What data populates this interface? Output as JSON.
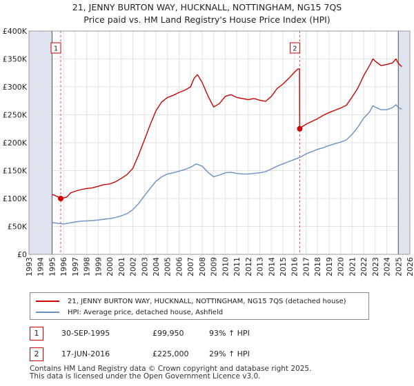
{
  "colors": {
    "price_line": "#cc0000",
    "hpi_line": "#6a8fc2",
    "shade": "#dde4f0",
    "grid": "#e2e2e2",
    "marker_box": "#cc0000"
  },
  "chart_data": {
    "type": "line",
    "title": "21, JENNY BURTON WAY, HUCKNALL, NOTTINGHAM, NG15 7QS",
    "subtitle": "Price paid vs. HM Land Registry's House Price Index (HPI)",
    "xlim": [
      1993,
      2026
    ],
    "ylim": [
      0,
      400000
    ],
    "x_ticks": [
      "1993",
      "1994",
      "1995",
      "1996",
      "1997",
      "1998",
      "1999",
      "2000",
      "2001",
      "2002",
      "2003",
      "2004",
      "2005",
      "2006",
      "2007",
      "2008",
      "2009",
      "2010",
      "2011",
      "2012",
      "2013",
      "2014",
      "2015",
      "2016",
      "2017",
      "2018",
      "2019",
      "2020",
      "2021",
      "2022",
      "2023",
      "2024",
      "2025",
      "2026"
    ],
    "y_ticks": [
      {
        "value": 0,
        "label": "£0"
      },
      {
        "value": 50000,
        "label": "£50K"
      },
      {
        "value": 100000,
        "label": "£100K"
      },
      {
        "value": 150000,
        "label": "£150K"
      },
      {
        "value": 200000,
        "label": "£200K"
      },
      {
        "value": 250000,
        "label": "£250K"
      },
      {
        "value": 300000,
        "label": "£300K"
      },
      {
        "value": 350000,
        "label": "£350K"
      },
      {
        "value": 400000,
        "label": "£400K"
      }
    ],
    "shaded_ranges": [
      [
        1993,
        1995.0
      ],
      [
        2025.0,
        2026
      ]
    ],
    "series": [
      {
        "name": "21, JENNY BURTON WAY, HUCKNALL, NOTTINGHAM, NG15 7QS (detached house)",
        "color": "#cc0000",
        "points": [
          [
            1995.0,
            107000
          ],
          [
            1995.2,
            106000
          ],
          [
            1995.5,
            103000
          ],
          [
            1995.75,
            99950
          ],
          [
            1996.0,
            101000
          ],
          [
            1996.3,
            103000
          ],
          [
            1996.6,
            110000
          ],
          [
            1997.0,
            113000
          ],
          [
            1997.5,
            116000
          ],
          [
            1998.0,
            118000
          ],
          [
            1998.5,
            119000
          ],
          [
            1999.0,
            122000
          ],
          [
            1999.5,
            125000
          ],
          [
            2000.0,
            126000
          ],
          [
            2000.5,
            130000
          ],
          [
            2001.0,
            136000
          ],
          [
            2001.5,
            143000
          ],
          [
            2002.0,
            154000
          ],
          [
            2002.5,
            178000
          ],
          [
            2003.0,
            205000
          ],
          [
            2003.5,
            232000
          ],
          [
            2004.0,
            257000
          ],
          [
            2004.5,
            273000
          ],
          [
            2005.0,
            281000
          ],
          [
            2005.5,
            285000
          ],
          [
            2006.0,
            290000
          ],
          [
            2006.5,
            294000
          ],
          [
            2007.0,
            300000
          ],
          [
            2007.3,
            315000
          ],
          [
            2007.6,
            322000
          ],
          [
            2008.0,
            308000
          ],
          [
            2008.5,
            284000
          ],
          [
            2009.0,
            264000
          ],
          [
            2009.5,
            270000
          ],
          [
            2010.0,
            283000
          ],
          [
            2010.5,
            286000
          ],
          [
            2011.0,
            281000
          ],
          [
            2011.5,
            279000
          ],
          [
            2012.0,
            277000
          ],
          [
            2012.5,
            279000
          ],
          [
            2013.0,
            276000
          ],
          [
            2013.5,
            274000
          ],
          [
            2014.0,
            283000
          ],
          [
            2014.5,
            297000
          ],
          [
            2015.0,
            305000
          ],
          [
            2015.5,
            315000
          ],
          [
            2016.0,
            326000
          ],
          [
            2016.3,
            332000
          ],
          [
            2016.44,
            332000
          ],
          [
            2016.46,
            225000
          ],
          [
            2016.7,
            229000
          ],
          [
            2017.0,
            233000
          ],
          [
            2017.5,
            238000
          ],
          [
            2018.0,
            243000
          ],
          [
            2018.5,
            249000
          ],
          [
            2019.0,
            254000
          ],
          [
            2019.5,
            258000
          ],
          [
            2020.0,
            262000
          ],
          [
            2020.5,
            267000
          ],
          [
            2021.0,
            282000
          ],
          [
            2021.5,
            298000
          ],
          [
            2022.0,
            320000
          ],
          [
            2022.5,
            338000
          ],
          [
            2022.8,
            350000
          ],
          [
            2023.0,
            346000
          ],
          [
            2023.5,
            338000
          ],
          [
            2024.0,
            340000
          ],
          [
            2024.5,
            343000
          ],
          [
            2024.8,
            350000
          ],
          [
            2025.0,
            342000
          ],
          [
            2025.3,
            336000
          ]
        ]
      },
      {
        "name": "HPI: Average price, detached house, Ashfield",
        "color": "#6a8fc2",
        "points": [
          [
            1995.0,
            57000
          ],
          [
            1995.5,
            55500
          ],
          [
            1996.0,
            54500
          ],
          [
            1996.5,
            56000
          ],
          [
            1997.0,
            58000
          ],
          [
            1997.5,
            59500
          ],
          [
            1998.0,
            60000
          ],
          [
            1998.5,
            60500
          ],
          [
            1999.0,
            61500
          ],
          [
            1999.5,
            63000
          ],
          [
            2000.0,
            64000
          ],
          [
            2000.5,
            66000
          ],
          [
            2001.0,
            69000
          ],
          [
            2001.5,
            73000
          ],
          [
            2002.0,
            80000
          ],
          [
            2002.5,
            91000
          ],
          [
            2003.0,
            105000
          ],
          [
            2003.5,
            118000
          ],
          [
            2004.0,
            131000
          ],
          [
            2004.5,
            139000
          ],
          [
            2005.0,
            144000
          ],
          [
            2005.5,
            146000
          ],
          [
            2006.0,
            149000
          ],
          [
            2006.5,
            152000
          ],
          [
            2007.0,
            156000
          ],
          [
            2007.5,
            162000
          ],
          [
            2008.0,
            158000
          ],
          [
            2008.5,
            147000
          ],
          [
            2009.0,
            139000
          ],
          [
            2009.5,
            142000
          ],
          [
            2010.0,
            146000
          ],
          [
            2010.5,
            147000
          ],
          [
            2011.0,
            145000
          ],
          [
            2011.5,
            144000
          ],
          [
            2012.0,
            144000
          ],
          [
            2012.5,
            145000
          ],
          [
            2013.0,
            146000
          ],
          [
            2013.5,
            148000
          ],
          [
            2014.0,
            153000
          ],
          [
            2014.5,
            158000
          ],
          [
            2015.0,
            162000
          ],
          [
            2015.5,
            166000
          ],
          [
            2016.0,
            170000
          ],
          [
            2016.5,
            174000
          ],
          [
            2017.0,
            180000
          ],
          [
            2017.5,
            184000
          ],
          [
            2018.0,
            188000
          ],
          [
            2018.5,
            191000
          ],
          [
            2019.0,
            195000
          ],
          [
            2019.5,
            198000
          ],
          [
            2020.0,
            201000
          ],
          [
            2020.5,
            205000
          ],
          [
            2021.0,
            215000
          ],
          [
            2021.5,
            228000
          ],
          [
            2022.0,
            244000
          ],
          [
            2022.5,
            255000
          ],
          [
            2022.8,
            266000
          ],
          [
            2023.0,
            264000
          ],
          [
            2023.5,
            259000
          ],
          [
            2024.0,
            259000
          ],
          [
            2024.5,
            263000
          ],
          [
            2024.8,
            268000
          ],
          [
            2025.0,
            263000
          ],
          [
            2025.3,
            260000
          ]
        ]
      }
    ],
    "sales": [
      {
        "label": "1",
        "x": 1995.75,
        "y": 99950
      },
      {
        "label": "2",
        "x": 2016.46,
        "y": 225000
      }
    ]
  },
  "legend": {
    "price_label": "21, JENNY BURTON WAY, HUCKNALL, NOTTINGHAM, NG15 7QS (detached house)",
    "hpi_label": "HPI: Average price, detached house, Ashfield"
  },
  "sales_table": [
    {
      "num": "1",
      "date": "30-SEP-1995",
      "price": "£99,950",
      "hpi": "93% ↑ HPI"
    },
    {
      "num": "2",
      "date": "17-JUN-2016",
      "price": "£225,000",
      "hpi": "29% ↑ HPI"
    }
  ],
  "footer": {
    "line1": "Contains HM Land Registry data © Crown copyright and database right 2025.",
    "line2": "This data is licensed under the Open Government Licence v3.0."
  }
}
